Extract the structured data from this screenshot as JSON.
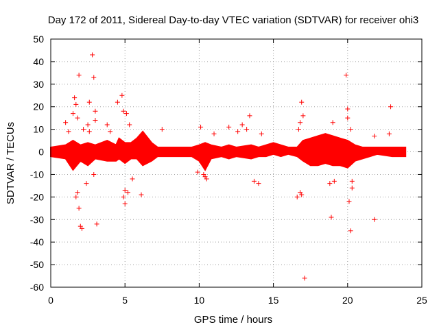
{
  "chart_data": {
    "type": "scatter",
    "title": "Day 172 of 2011, Sidereal Day-to-day VTEC variation (SDTVAR) for receiver ohi3",
    "xlabel": "GPS time / hours",
    "ylabel": "SDTVAR / TECUs",
    "xlim": [
      0,
      25
    ],
    "ylim": [
      -60,
      50
    ],
    "xticks": [
      0,
      5,
      10,
      15,
      20,
      25
    ],
    "yticks": [
      50,
      40,
      30,
      20,
      10,
      0,
      -10,
      -20,
      -30,
      -40,
      -50,
      -60
    ],
    "grid": true,
    "marker": "+",
    "color": "#ff0000",
    "series": [
      {
        "name": "SDTVAR",
        "points": [
          [
            1.0,
            13
          ],
          [
            1.2,
            9
          ],
          [
            1.5,
            17
          ],
          [
            1.6,
            24
          ],
          [
            1.7,
            21
          ],
          [
            1.8,
            15
          ],
          [
            1.9,
            34
          ],
          [
            1.8,
            -18
          ],
          [
            1.7,
            -20
          ],
          [
            1.9,
            -25
          ],
          [
            2.0,
            -33
          ],
          [
            2.1,
            -34
          ],
          [
            2.4,
            -14
          ],
          [
            2.6,
            22
          ],
          [
            2.8,
            43
          ],
          [
            2.9,
            33
          ],
          [
            3.0,
            18
          ],
          [
            3.0,
            14
          ],
          [
            3.1,
            -32
          ],
          [
            2.6,
            9
          ],
          [
            2.2,
            10
          ],
          [
            2.9,
            -10
          ],
          [
            2.5,
            12
          ],
          [
            4.5,
            22
          ],
          [
            4.8,
            25
          ],
          [
            4.9,
            18
          ],
          [
            5.1,
            17
          ],
          [
            5.0,
            -17
          ],
          [
            4.9,
            -20
          ],
          [
            5.0,
            -23
          ],
          [
            5.2,
            -18
          ],
          [
            6.1,
            -19
          ],
          [
            3.8,
            12
          ],
          [
            4.0,
            9
          ],
          [
            5.5,
            -12
          ],
          [
            5.3,
            12
          ],
          [
            7.5,
            10
          ],
          [
            10.1,
            11
          ],
          [
            10.3,
            -10
          ],
          [
            10.5,
            -12
          ],
          [
            10.4,
            -11
          ],
          [
            11.0,
            8
          ],
          [
            12.0,
            11
          ],
          [
            12.6,
            9
          ],
          [
            12.9,
            12
          ],
          [
            13.4,
            16
          ],
          [
            13.7,
            -13
          ],
          [
            14.0,
            -14
          ],
          [
            13.2,
            10
          ],
          [
            9.9,
            -9
          ],
          [
            14.2,
            8
          ],
          [
            16.6,
            -20
          ],
          [
            16.8,
            -18
          ],
          [
            16.9,
            -19
          ],
          [
            16.9,
            22
          ],
          [
            16.8,
            13
          ],
          [
            17.0,
            16
          ],
          [
            17.1,
            -56
          ],
          [
            16.7,
            10
          ],
          [
            18.8,
            -14
          ],
          [
            19.0,
            13
          ],
          [
            18.9,
            -29
          ],
          [
            19.1,
            -13
          ],
          [
            19.9,
            34
          ],
          [
            20.0,
            19
          ],
          [
            20.0,
            15
          ],
          [
            20.1,
            -22
          ],
          [
            20.2,
            -35
          ],
          [
            20.2,
            10
          ],
          [
            20.3,
            -13
          ],
          [
            20.3,
            -16
          ],
          [
            21.8,
            -30
          ],
          [
            21.8,
            7
          ],
          [
            22.9,
            20
          ],
          [
            22.8,
            8
          ]
        ]
      }
    ],
    "dense_band": [
      [
        0.0,
        -2,
        2
      ],
      [
        1.0,
        -3,
        3
      ],
      [
        1.5,
        -8,
        5
      ],
      [
        2.0,
        -4,
        3
      ],
      [
        2.5,
        -6,
        4
      ],
      [
        3.0,
        -3,
        3
      ],
      [
        3.8,
        -4,
        5
      ],
      [
        4.4,
        -4,
        3
      ],
      [
        4.6,
        -3,
        6
      ],
      [
        5.0,
        -5,
        4
      ],
      [
        5.4,
        -3,
        4
      ],
      [
        5.8,
        -3,
        6
      ],
      [
        6.2,
        -6,
        9
      ],
      [
        6.8,
        -4,
        4
      ],
      [
        7.2,
        -2,
        2
      ],
      [
        8.0,
        -2,
        2
      ],
      [
        9.5,
        -2,
        2
      ],
      [
        10.0,
        -4,
        3
      ],
      [
        10.4,
        -8,
        4
      ],
      [
        10.8,
        -3,
        3
      ],
      [
        11.5,
        -2,
        2
      ],
      [
        12.0,
        -3,
        3
      ],
      [
        12.5,
        -2,
        2
      ],
      [
        13.5,
        -3,
        3
      ],
      [
        14.0,
        -2,
        2
      ],
      [
        14.5,
        -2,
        3
      ],
      [
        15.0,
        -1,
        4
      ],
      [
        15.5,
        -2,
        3
      ],
      [
        16.0,
        -1,
        2
      ],
      [
        16.6,
        -2,
        2
      ],
      [
        17.0,
        -4,
        5
      ],
      [
        17.5,
        -6,
        6
      ],
      [
        18.0,
        -6,
        7
      ],
      [
        18.5,
        -5,
        8
      ],
      [
        19.0,
        -6,
        7
      ],
      [
        19.5,
        -6,
        6
      ],
      [
        20.0,
        -7,
        5
      ],
      [
        20.5,
        -4,
        3
      ],
      [
        21.0,
        -3,
        2
      ],
      [
        21.5,
        -2,
        2
      ],
      [
        22.0,
        -1,
        2
      ],
      [
        23.0,
        -2,
        2
      ],
      [
        23.9,
        -2,
        2
      ]
    ]
  }
}
